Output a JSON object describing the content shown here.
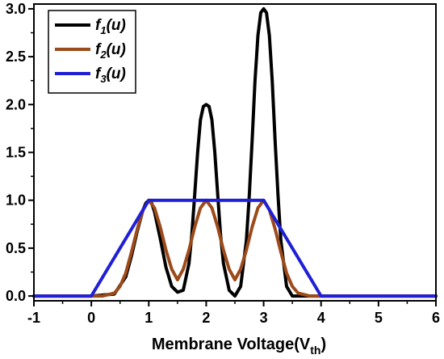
{
  "chart_data": {
    "type": "line",
    "xlabel": "Membrane Voltage(V",
    "xlabel_sub": "th",
    "xlabel_close": ")",
    "ylabel": "",
    "xlim": [
      -1,
      6
    ],
    "ylim": [
      -0.05,
      3.05
    ],
    "xticks": [
      -1,
      0,
      1,
      2,
      3,
      4,
      5,
      6
    ],
    "xtick_labels": [
      "-1",
      "0",
      "1",
      "2",
      "3",
      "4",
      "5",
      "6"
    ],
    "yticks": [
      0.0,
      0.5,
      1.0,
      1.5,
      2.0,
      2.5,
      3.0
    ],
    "ytick_labels": [
      "0.0",
      "0.5",
      "1.0",
      "1.5",
      "2.0",
      "2.5",
      "3.0"
    ],
    "grid": false,
    "legend_position": "top-left",
    "series": [
      {
        "name": "f1(u)",
        "label_main": "f",
        "label_sub": "1",
        "label_rest": "(u)",
        "color": "#000000",
        "x": [
          -1.0,
          0.0,
          0.4,
          0.6,
          0.7,
          0.8,
          0.9,
          0.95,
          1.0,
          1.05,
          1.1,
          1.2,
          1.3,
          1.4,
          1.5,
          1.6,
          1.7,
          1.75,
          1.8,
          1.85,
          1.9,
          1.95,
          2.0,
          2.05,
          2.1,
          2.15,
          2.2,
          2.25,
          2.3,
          2.4,
          2.5,
          2.6,
          2.7,
          2.75,
          2.8,
          2.85,
          2.9,
          2.95,
          3.0,
          3.05,
          3.1,
          3.15,
          3.2,
          3.25,
          3.3,
          3.4,
          3.5,
          4.0,
          6.0
        ],
        "y": [
          0.0,
          0.0,
          0.02,
          0.2,
          0.42,
          0.68,
          0.9,
          0.97,
          1.0,
          0.97,
          0.88,
          0.6,
          0.3,
          0.1,
          0.04,
          0.06,
          0.34,
          0.64,
          1.06,
          1.5,
          1.84,
          1.98,
          2.0,
          1.98,
          1.84,
          1.5,
          1.06,
          0.64,
          0.34,
          0.06,
          0.0,
          0.1,
          0.58,
          1.05,
          1.62,
          2.25,
          2.72,
          2.96,
          3.0,
          2.96,
          2.72,
          2.25,
          1.62,
          1.05,
          0.58,
          0.1,
          0.0,
          0.0,
          0.0
        ]
      },
      {
        "name": "f2(u)",
        "label_main": "f",
        "label_sub": "2",
        "label_rest": "(u)",
        "color": "#9c4a1a",
        "x": [
          -1.0,
          0.0,
          0.2,
          0.4,
          0.5,
          0.6,
          0.7,
          0.8,
          0.9,
          1.0,
          1.1,
          1.2,
          1.3,
          1.4,
          1.5,
          1.6,
          1.7,
          1.8,
          1.9,
          2.0,
          2.1,
          2.2,
          2.3,
          2.4,
          2.5,
          2.6,
          2.7,
          2.8,
          2.9,
          3.0,
          3.1,
          3.2,
          3.3,
          3.4,
          3.5,
          3.6,
          3.8,
          4.0,
          6.0
        ],
        "y": [
          0.0,
          0.0,
          0.0,
          0.03,
          0.1,
          0.24,
          0.46,
          0.7,
          0.9,
          1.0,
          0.92,
          0.72,
          0.48,
          0.28,
          0.17,
          0.28,
          0.48,
          0.72,
          0.92,
          1.0,
          0.92,
          0.72,
          0.48,
          0.28,
          0.17,
          0.28,
          0.48,
          0.72,
          0.92,
          1.0,
          0.9,
          0.7,
          0.46,
          0.24,
          0.1,
          0.03,
          0.0,
          0.0,
          0.0
        ]
      },
      {
        "name": "f3(u)",
        "label_main": "f",
        "label_sub": "3",
        "label_rest": "(u)",
        "color": "#1f1fd6",
        "x": [
          -1.0,
          0.0,
          1.0,
          3.0,
          4.0,
          6.0
        ],
        "y": [
          0.0,
          0.0,
          1.0,
          1.0,
          0.0,
          0.0
        ]
      }
    ]
  }
}
